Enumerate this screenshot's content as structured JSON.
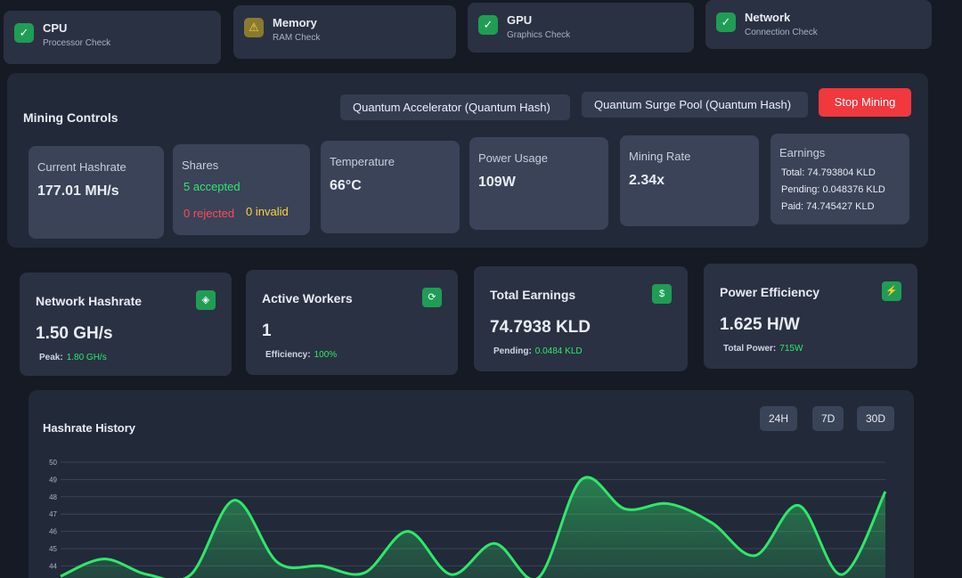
{
  "status_checks": [
    {
      "title": "CPU",
      "subtitle": "Processor Check"
    },
    {
      "title": "Memory",
      "subtitle": "RAM Check"
    },
    {
      "title": "GPU",
      "subtitle": "Graphics Check"
    },
    {
      "title": "Network",
      "subtitle": "Connection Check"
    }
  ],
  "controls": {
    "title": "Mining Controls",
    "algorithm": "Quantum Accelerator (Quantum Hash)",
    "pool": "Quantum Surge Pool (Quantum Hash)",
    "stop_button": "Stop Mining"
  },
  "stats": {
    "hashrate": {
      "label": "Current Hashrate",
      "value": "177.01 MH/s"
    },
    "shares": {
      "label": "Shares",
      "accepted": "5 accepted",
      "rejected": "0 rejected",
      "invalid": "0 invalid"
    },
    "temperature": {
      "label": "Temperature",
      "value": "66°C"
    },
    "power": {
      "label": "Power Usage",
      "value": "109W"
    },
    "rate": {
      "label": "Mining Rate",
      "value": "2.34x"
    },
    "earnings": {
      "label": "Earnings",
      "total": "Total: 74.793804 KLD",
      "pending": "Pending: 0.048376 KLD",
      "paid": "Paid: 74.745427 KLD"
    }
  },
  "summary": [
    {
      "title": "Network Hashrate",
      "value": "1.50 GH/s",
      "sub_label": "Peak:",
      "sub_value": "1.80 GH/s"
    },
    {
      "title": "Active Workers",
      "value": "1",
      "sub_label": "Efficiency:",
      "sub_value": "100%"
    },
    {
      "title": "Total Earnings",
      "value": "74.7938 KLD",
      "sub_label": "Pending:",
      "sub_value": "0.0484 KLD"
    },
    {
      "title": "Power Efficiency",
      "value": "1.625 H/W",
      "sub_label": "Total Power:",
      "sub_value": "715W"
    }
  ],
  "chart_data": {
    "type": "line",
    "title": "Hashrate History",
    "ranges": [
      "24H",
      "7D",
      "30D"
    ],
    "ylim": [
      43.3,
      50
    ],
    "yticks": [
      50,
      49,
      48,
      47,
      46,
      45,
      44
    ],
    "color": "#2ee86a",
    "values": [
      43.4,
      44.4,
      43.5,
      43.5,
      47.8,
      44.2,
      44.0,
      43.6,
      46.0,
      43.5,
      45.3,
      43.3,
      49.0,
      47.3,
      47.6,
      46.5,
      44.6,
      47.5,
      43.5,
      48.3
    ]
  }
}
